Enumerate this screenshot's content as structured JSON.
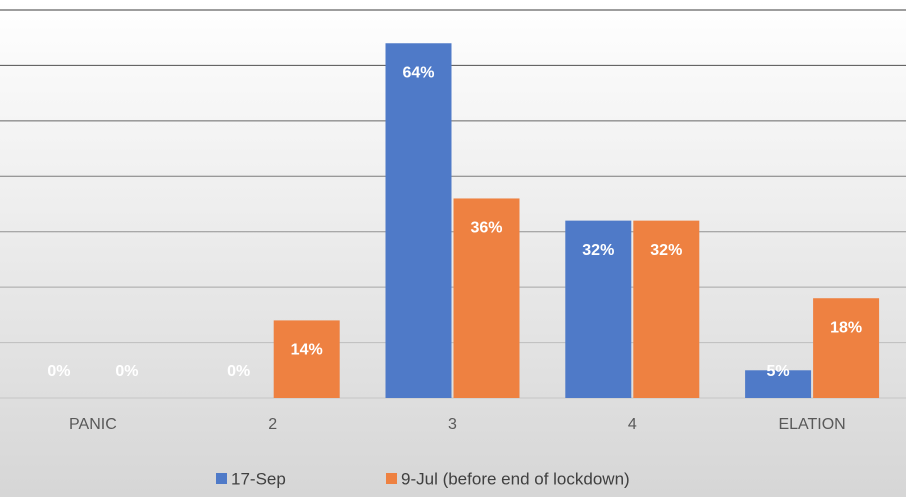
{
  "chart_data": {
    "type": "bar",
    "categories": [
      "PANIC",
      "2",
      "3",
      "4",
      "ELATION"
    ],
    "series": [
      {
        "name": "17-Sep",
        "color": "#4f7ac8",
        "values": [
          0,
          0,
          64,
          32,
          5
        ],
        "value_labels": [
          "0%",
          "0%",
          "64%",
          "32%",
          "5%"
        ]
      },
      {
        "name": "9-Jul (before end of lockdown)",
        "color": "#ee8141",
        "values": [
          0,
          14,
          36,
          32,
          18
        ],
        "value_labels": [
          "0%",
          "14%",
          "36%",
          "32%",
          "18%"
        ]
      }
    ],
    "ylim": [
      0,
      70
    ],
    "yticks": [
      0,
      10,
      20,
      30,
      40,
      50,
      60,
      70
    ],
    "grid": true
  }
}
